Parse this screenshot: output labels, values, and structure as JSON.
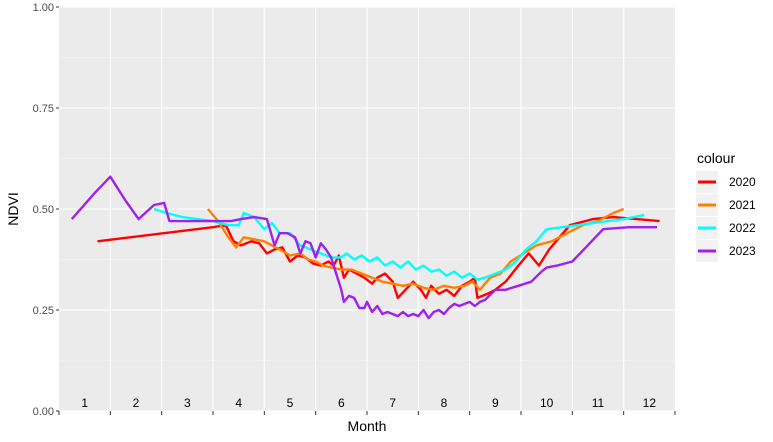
{
  "chart_data": {
    "type": "line",
    "xlabel": "Month",
    "ylabel": "NDVI",
    "xlim": [
      0.5,
      12.5
    ],
    "ylim": [
      0,
      1
    ],
    "y_ticks": [
      "0.00",
      "0.25",
      "0.50",
      "0.75",
      "1.00"
    ],
    "y_tick_values": [
      0,
      0.25,
      0.5,
      0.75,
      1.0
    ],
    "month_labels": [
      "1",
      "2",
      "3",
      "4",
      "5",
      "6",
      "7",
      "8",
      "9",
      "10",
      "11",
      "12"
    ],
    "grid": true,
    "legend": {
      "title": "colour",
      "position": "right"
    },
    "series": [
      {
        "name": "2020",
        "color": "#ff0000",
        "points": [
          [
            1.25,
            0.42
          ],
          [
            3.5,
            0.455
          ],
          [
            3.75,
            0.46
          ],
          [
            3.9,
            0.42
          ],
          [
            4.05,
            0.41
          ],
          [
            4.25,
            0.42
          ],
          [
            4.4,
            0.415
          ],
          [
            4.55,
            0.39
          ],
          [
            4.7,
            0.4
          ],
          [
            4.85,
            0.405
          ],
          [
            5.0,
            0.37
          ],
          [
            5.15,
            0.385
          ],
          [
            5.3,
            0.38
          ],
          [
            5.45,
            0.365
          ],
          [
            5.6,
            0.36
          ],
          [
            5.75,
            0.37
          ],
          [
            5.85,
            0.36
          ],
          [
            5.95,
            0.385
          ],
          [
            6.05,
            0.33
          ],
          [
            6.15,
            0.35
          ],
          [
            6.3,
            0.34
          ],
          [
            6.45,
            0.33
          ],
          [
            6.6,
            0.315
          ],
          [
            6.7,
            0.33
          ],
          [
            6.85,
            0.34
          ],
          [
            7.0,
            0.32
          ],
          [
            7.1,
            0.28
          ],
          [
            7.25,
            0.3
          ],
          [
            7.4,
            0.32
          ],
          [
            7.55,
            0.3
          ],
          [
            7.65,
            0.28
          ],
          [
            7.75,
            0.31
          ],
          [
            7.9,
            0.29
          ],
          [
            8.05,
            0.3
          ],
          [
            8.2,
            0.285
          ],
          [
            8.35,
            0.31
          ],
          [
            8.5,
            0.32
          ],
          [
            8.6,
            0.33
          ],
          [
            8.65,
            0.28
          ],
          [
            8.85,
            0.29
          ],
          [
            9.0,
            0.3
          ],
          [
            9.2,
            0.32
          ],
          [
            9.45,
            0.36
          ],
          [
            9.65,
            0.39
          ],
          [
            9.85,
            0.36
          ],
          [
            10.05,
            0.4
          ],
          [
            10.25,
            0.43
          ],
          [
            10.45,
            0.46
          ],
          [
            10.9,
            0.475
          ],
          [
            11.3,
            0.48
          ],
          [
            11.75,
            0.475
          ],
          [
            12.2,
            0.47
          ]
        ]
      },
      {
        "name": "2021",
        "color": "#ff8000",
        "points": [
          [
            3.4,
            0.5
          ],
          [
            3.6,
            0.47
          ],
          [
            3.8,
            0.43
          ],
          [
            3.95,
            0.405
          ],
          [
            4.1,
            0.43
          ],
          [
            4.3,
            0.425
          ],
          [
            4.5,
            0.42
          ],
          [
            4.65,
            0.41
          ],
          [
            4.8,
            0.4
          ],
          [
            5.0,
            0.385
          ],
          [
            5.2,
            0.39
          ],
          [
            5.35,
            0.375
          ],
          [
            5.5,
            0.37
          ],
          [
            5.65,
            0.36
          ],
          [
            5.8,
            0.355
          ],
          [
            6.0,
            0.35
          ],
          [
            6.2,
            0.35
          ],
          [
            6.4,
            0.34
          ],
          [
            6.6,
            0.33
          ],
          [
            6.8,
            0.32
          ],
          [
            7.0,
            0.315
          ],
          [
            7.2,
            0.31
          ],
          [
            7.4,
            0.315
          ],
          [
            7.6,
            0.305
          ],
          [
            7.8,
            0.3
          ],
          [
            8.0,
            0.31
          ],
          [
            8.2,
            0.305
          ],
          [
            8.4,
            0.31
          ],
          [
            8.55,
            0.32
          ],
          [
            8.7,
            0.3
          ],
          [
            8.9,
            0.33
          ],
          [
            9.1,
            0.34
          ],
          [
            9.3,
            0.37
          ],
          [
            9.55,
            0.39
          ],
          [
            9.8,
            0.41
          ],
          [
            10.1,
            0.42
          ],
          [
            10.4,
            0.44
          ],
          [
            10.7,
            0.46
          ],
          [
            11.0,
            0.47
          ],
          [
            11.3,
            0.49
          ],
          [
            11.5,
            0.5
          ]
        ]
      },
      {
        "name": "2022",
        "color": "#00ffff",
        "points": [
          [
            2.35,
            0.5
          ],
          [
            2.6,
            0.49
          ],
          [
            2.9,
            0.48
          ],
          [
            3.2,
            0.475
          ],
          [
            3.5,
            0.47
          ],
          [
            3.8,
            0.46
          ],
          [
            4.0,
            0.46
          ],
          [
            4.1,
            0.49
          ],
          [
            4.3,
            0.48
          ],
          [
            4.5,
            0.45
          ],
          [
            4.65,
            0.465
          ],
          [
            4.8,
            0.44
          ],
          [
            5.0,
            0.44
          ],
          [
            5.2,
            0.41
          ],
          [
            5.4,
            0.4
          ],
          [
            5.6,
            0.39
          ],
          [
            5.8,
            0.38
          ],
          [
            6.0,
            0.38
          ],
          [
            6.1,
            0.39
          ],
          [
            6.25,
            0.375
          ],
          [
            6.4,
            0.385
          ],
          [
            6.55,
            0.37
          ],
          [
            6.7,
            0.38
          ],
          [
            6.85,
            0.36
          ],
          [
            7.0,
            0.37
          ],
          [
            7.15,
            0.355
          ],
          [
            7.3,
            0.37
          ],
          [
            7.45,
            0.35
          ],
          [
            7.6,
            0.36
          ],
          [
            7.75,
            0.345
          ],
          [
            7.9,
            0.35
          ],
          [
            8.05,
            0.335
          ],
          [
            8.2,
            0.345
          ],
          [
            8.35,
            0.33
          ],
          [
            8.5,
            0.34
          ],
          [
            8.65,
            0.325
          ],
          [
            8.8,
            0.33
          ],
          [
            9.0,
            0.34
          ],
          [
            9.2,
            0.35
          ],
          [
            9.4,
            0.37
          ],
          [
            9.6,
            0.4
          ],
          [
            9.8,
            0.42
          ],
          [
            10.0,
            0.45
          ],
          [
            10.3,
            0.455
          ],
          [
            10.6,
            0.46
          ],
          [
            10.9,
            0.465
          ],
          [
            11.2,
            0.47
          ],
          [
            11.5,
            0.475
          ],
          [
            11.9,
            0.485
          ]
        ]
      },
      {
        "name": "2023",
        "color": "#a020f0",
        "points": [
          [
            0.75,
            0.475
          ],
          [
            1.2,
            0.54
          ],
          [
            1.5,
            0.58
          ],
          [
            1.8,
            0.52
          ],
          [
            2.05,
            0.475
          ],
          [
            2.35,
            0.51
          ],
          [
            2.55,
            0.515
          ],
          [
            2.65,
            0.47
          ],
          [
            3.0,
            0.47
          ],
          [
            3.5,
            0.47
          ],
          [
            3.85,
            0.47
          ],
          [
            4.05,
            0.475
          ],
          [
            4.3,
            0.48
          ],
          [
            4.55,
            0.475
          ],
          [
            4.7,
            0.41
          ],
          [
            4.8,
            0.44
          ],
          [
            4.95,
            0.44
          ],
          [
            5.1,
            0.43
          ],
          [
            5.2,
            0.39
          ],
          [
            5.3,
            0.42
          ],
          [
            5.4,
            0.415
          ],
          [
            5.5,
            0.38
          ],
          [
            5.6,
            0.415
          ],
          [
            5.7,
            0.4
          ],
          [
            5.8,
            0.38
          ],
          [
            5.9,
            0.34
          ],
          [
            6.0,
            0.3
          ],
          [
            6.05,
            0.27
          ],
          [
            6.15,
            0.285
          ],
          [
            6.25,
            0.28
          ],
          [
            6.35,
            0.255
          ],
          [
            6.45,
            0.255
          ],
          [
            6.5,
            0.27
          ],
          [
            6.6,
            0.245
          ],
          [
            6.7,
            0.26
          ],
          [
            6.8,
            0.24
          ],
          [
            6.9,
            0.245
          ],
          [
            7.0,
            0.24
          ],
          [
            7.1,
            0.235
          ],
          [
            7.2,
            0.245
          ],
          [
            7.3,
            0.235
          ],
          [
            7.4,
            0.24
          ],
          [
            7.5,
            0.235
          ],
          [
            7.6,
            0.25
          ],
          [
            7.7,
            0.23
          ],
          [
            7.8,
            0.245
          ],
          [
            7.9,
            0.25
          ],
          [
            8.0,
            0.24
          ],
          [
            8.1,
            0.255
          ],
          [
            8.2,
            0.265
          ],
          [
            8.3,
            0.26
          ],
          [
            8.4,
            0.265
          ],
          [
            8.5,
            0.27
          ],
          [
            8.6,
            0.26
          ],
          [
            8.7,
            0.27
          ],
          [
            8.8,
            0.275
          ],
          [
            9.0,
            0.3
          ],
          [
            9.2,
            0.3
          ],
          [
            9.45,
            0.31
          ],
          [
            9.7,
            0.32
          ],
          [
            9.9,
            0.345
          ],
          [
            10.0,
            0.355
          ],
          [
            10.2,
            0.36
          ],
          [
            10.5,
            0.37
          ],
          [
            10.8,
            0.41
          ],
          [
            11.1,
            0.45
          ],
          [
            11.6,
            0.455
          ],
          [
            12.15,
            0.455
          ]
        ]
      }
    ]
  }
}
